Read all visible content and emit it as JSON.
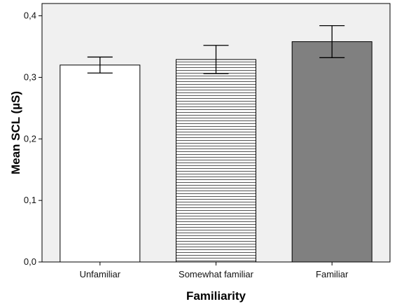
{
  "chart_data": {
    "type": "bar",
    "title": "",
    "xlabel": "Familiarity",
    "ylabel": "Mean SCL (µS)",
    "categories": [
      "Unfamiliar",
      "Somewhat familiar",
      "Familiar"
    ],
    "values": [
      0.32,
      0.329,
      0.358
    ],
    "error_bars": [
      {
        "low": 0.307,
        "high": 0.333
      },
      {
        "low": 0.306,
        "high": 0.352
      },
      {
        "low": 0.332,
        "high": 0.384
      }
    ],
    "ylim": [
      0,
      0.42
    ],
    "yticks": [
      {
        "value": 0.0,
        "label": "0,0"
      },
      {
        "value": 0.1,
        "label": "0,1"
      },
      {
        "value": 0.2,
        "label": "0,2"
      },
      {
        "value": 0.3,
        "label": "0,3"
      },
      {
        "value": 0.4,
        "label": "0,4"
      }
    ],
    "grid": false,
    "legend": "none",
    "bar_styles": [
      {
        "fill": "#ffffff",
        "pattern": "none"
      },
      {
        "fill": "#ffffff",
        "pattern": "horizontal-lines"
      },
      {
        "fill": "#808080",
        "pattern": "none"
      }
    ],
    "plot_background": "#f0f0f0"
  }
}
